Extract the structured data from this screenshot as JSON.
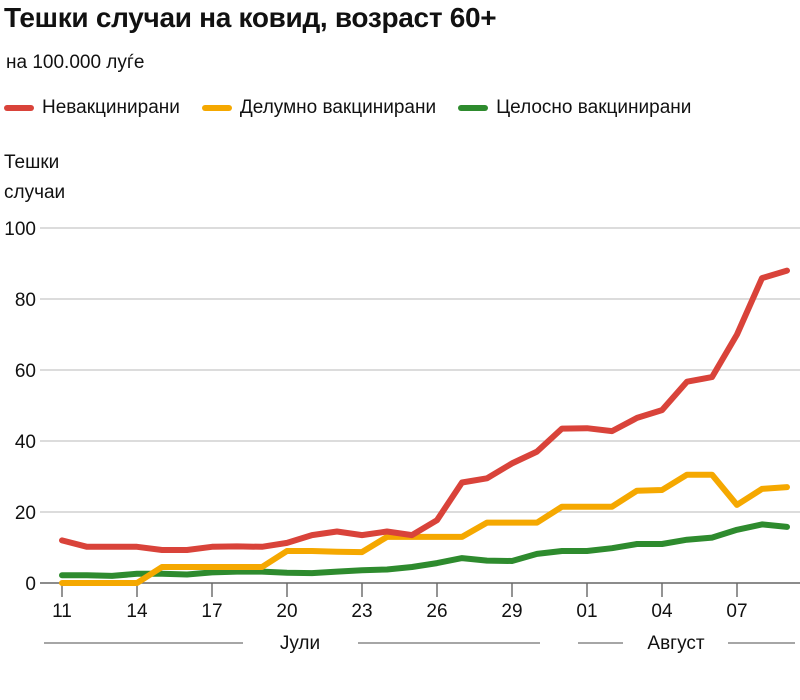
{
  "title": "Тешки случаи на ковид, возраст 60+",
  "subtitle": "на 100.000 луѓе",
  "chart_data": {
    "type": "line",
    "title": "Тешки случаи на ковид, возраст 60+",
    "subtitle": "на 100.000 луѓе",
    "ylabel_line1": "Тешки",
    "ylabel_line2": "случаи",
    "xlabel": "",
    "ylim": [
      0,
      100
    ],
    "yticks": [
      0,
      20,
      40,
      60,
      80,
      100
    ],
    "x": [
      "11",
      "12",
      "13",
      "14",
      "15",
      "16",
      "17",
      "18",
      "19",
      "20",
      "21",
      "22",
      "23",
      "24",
      "25",
      "26",
      "27",
      "28",
      "29",
      "30",
      "31",
      "01",
      "02",
      "03",
      "04",
      "05",
      "06",
      "07",
      "08",
      "09"
    ],
    "xtick_labels": [
      {
        "index": 0,
        "label": "11"
      },
      {
        "index": 3,
        "label": "14"
      },
      {
        "index": 6,
        "label": "17"
      },
      {
        "index": 9,
        "label": "20"
      },
      {
        "index": 12,
        "label": "23"
      },
      {
        "index": 15,
        "label": "26"
      },
      {
        "index": 18,
        "label": "29"
      },
      {
        "index": 21,
        "label": "01"
      },
      {
        "index": 24,
        "label": "04"
      },
      {
        "index": 27,
        "label": "07"
      }
    ],
    "months": [
      {
        "label": "Јули",
        "start": 0,
        "end": 20
      },
      {
        "label": "Август",
        "start": 21,
        "end": 29
      }
    ],
    "grid": true,
    "legend_position": "top",
    "series": [
      {
        "name": "Невакцинирани",
        "color": "#d9433a",
        "values": [
          12,
          10.2,
          10.2,
          10.2,
          9.3,
          9.3,
          10.2,
          10.3,
          10.2,
          11.3,
          13.5,
          14.5,
          13.5,
          14.5,
          13.5,
          17.7,
          28.3,
          29.5,
          33.7,
          37,
          43.5,
          43.6,
          42.8,
          46.5,
          48.7,
          56.7,
          58,
          70,
          85.9,
          88
        ]
      },
      {
        "name": "Делумно вакцинирани",
        "color": "#f5a800",
        "values": [
          0,
          0,
          0,
          0,
          4.5,
          4.5,
          4.5,
          4.5,
          4.5,
          9,
          9,
          8.8,
          8.7,
          13,
          13,
          13,
          13,
          17,
          17,
          17,
          21.5,
          21.5,
          21.5,
          26,
          26.2,
          30.5,
          30.5,
          22,
          26.5,
          27
        ]
      },
      {
        "name": "Целосно вакцинирани",
        "color": "#2e8b2e",
        "values": [
          2.2,
          2.2,
          2.0,
          2.6,
          2.6,
          2.4,
          3.0,
          3.2,
          3.2,
          2.9,
          2.8,
          3.2,
          3.6,
          3.8,
          4.5,
          5.6,
          7.0,
          6.3,
          6.2,
          8.2,
          9.0,
          9.0,
          9.8,
          11.0,
          11.0,
          12.2,
          12.8,
          15.0,
          16.5,
          15.8
        ]
      }
    ]
  }
}
